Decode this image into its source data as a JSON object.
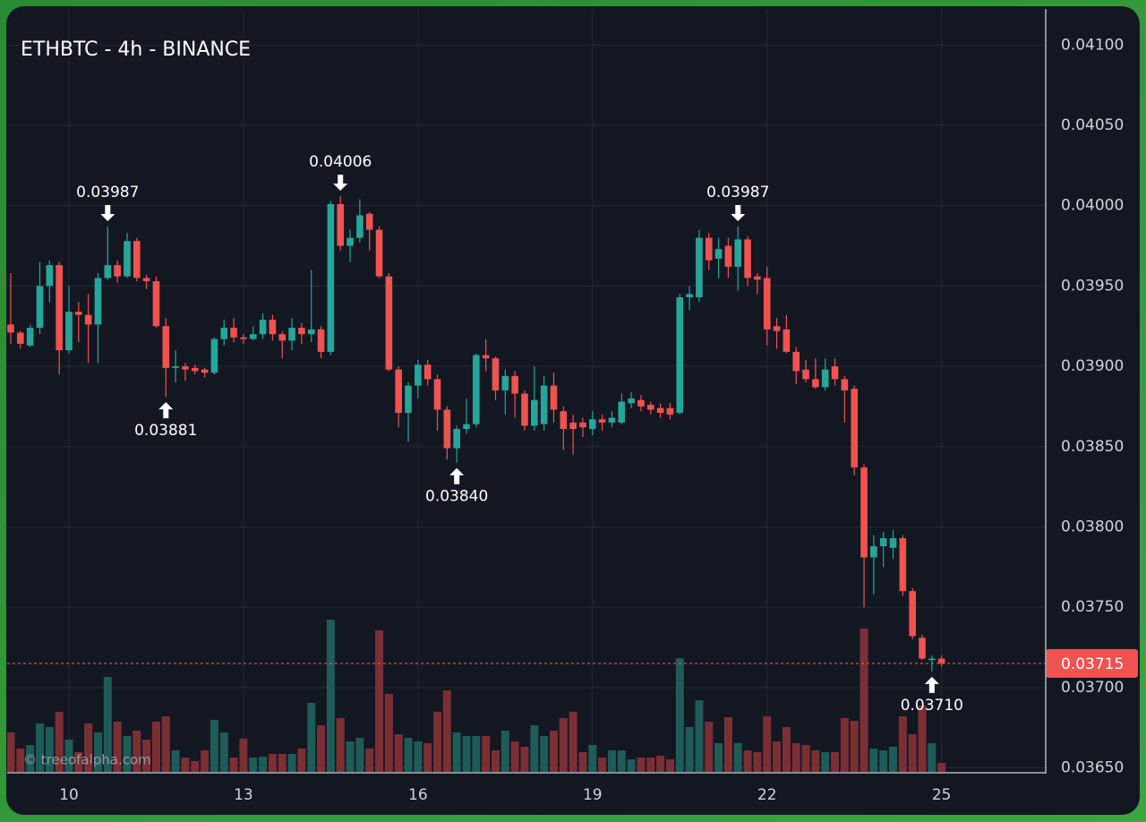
{
  "chart_data": {
    "type": "candlestick",
    "title": "ETHBTC - 4h - BINANCE",
    "watermark": "© treeofalpha.com",
    "categories": [
      null,
      null,
      null,
      null,
      null,
      null,
      "10",
      null,
      null,
      null,
      null,
      null,
      null,
      null,
      null,
      null,
      null,
      null,
      null,
      null,
      null,
      null,
      null,
      null,
      "13",
      null,
      null,
      null,
      null,
      null,
      null,
      null,
      null,
      null,
      null,
      null,
      null,
      null,
      null,
      null,
      null,
      null,
      "16",
      null,
      null,
      null,
      null,
      null,
      null,
      null,
      null,
      null,
      null,
      null,
      null,
      null,
      null,
      null,
      null,
      null,
      "19",
      null,
      null,
      null,
      null,
      null,
      null,
      null,
      null,
      null,
      null,
      null,
      null,
      null,
      null,
      null,
      null,
      null,
      "22",
      null,
      null,
      null,
      null,
      null,
      null,
      null,
      null,
      null,
      null,
      null,
      null,
      null,
      null,
      null,
      null,
      null,
      "25"
    ],
    "open": [
      0.03926,
      0.03921,
      0.03913,
      0.03924,
      0.0395,
      0.03963,
      0.0391,
      0.03934,
      0.03932,
      0.03926,
      0.03955,
      0.03963,
      0.03956,
      0.03978,
      0.03955,
      0.03953,
      0.03925,
      0.03899,
      0.039,
      0.03899,
      0.03898,
      0.03896,
      0.03917,
      0.03924,
      0.03918,
      0.03917,
      0.0392,
      0.03929,
      0.0392,
      0.03916,
      0.03924,
      0.0392,
      0.03923,
      0.03909,
      0.04001,
      0.03975,
      0.0398,
      0.03995,
      0.03985,
      0.03956,
      0.03898,
      0.03871,
      0.03888,
      0.03901,
      0.03892,
      0.03873,
      0.03849,
      0.03861,
      0.03864,
      0.03907,
      0.03905,
      0.03885,
      0.03894,
      0.03883,
      0.03863,
      0.03864,
      0.03888,
      0.03872,
      0.03865,
      0.03865,
      0.03861,
      0.03867,
      0.03865,
      0.03865,
      0.03877,
      0.03879,
      0.03876,
      0.03874,
      0.03874,
      0.03871,
      0.03943,
      0.03943,
      0.0398,
      0.03967,
      0.03975,
      0.03962,
      0.03979,
      0.03956,
      0.03955,
      0.03925,
      0.03923,
      0.03909,
      0.03898,
      0.03892,
      0.03887,
      0.039,
      0.03892,
      0.03886,
      0.03837,
      0.03781,
      0.03788,
      0.03787,
      0.03793,
      0.0376,
      0.03731,
      0.03717,
      0.03718
    ],
    "high": [
      0.03958,
      0.03922,
      0.03926,
      0.03965,
      0.03966,
      0.03965,
      0.0395,
      0.0394,
      0.03945,
      0.03958,
      0.03987,
      0.03966,
      0.03983,
      0.0398,
      0.03957,
      0.03956,
      0.0393,
      0.0391,
      0.03902,
      0.03901,
      0.03899,
      0.03918,
      0.03929,
      0.0393,
      0.0392,
      0.03925,
      0.03933,
      0.03932,
      0.03922,
      0.0393,
      0.03927,
      0.0396,
      0.03925,
      0.04003,
      0.04006,
      0.03985,
      0.04004,
      0.03996,
      0.03987,
      0.03958,
      0.039,
      0.0389,
      0.03904,
      0.03904,
      0.03895,
      0.03875,
      0.03863,
      0.0388,
      0.03908,
      0.03917,
      0.03906,
      0.03898,
      0.03897,
      0.03885,
      0.039,
      0.03894,
      0.03896,
      0.03875,
      0.0387,
      0.03868,
      0.03872,
      0.0387,
      0.03872,
      0.03883,
      0.03884,
      0.03882,
      0.03878,
      0.03877,
      0.03877,
      0.03945,
      0.0395,
      0.03985,
      0.03983,
      0.0398,
      0.0398,
      0.03987,
      0.03981,
      0.03958,
      0.03962,
      0.0393,
      0.03932,
      0.03912,
      0.03904,
      0.03905,
      0.03905,
      0.03905,
      0.03894,
      0.03888,
      0.03839,
      0.03795,
      0.03797,
      0.03798,
      0.03795,
      0.03762,
      0.03733,
      0.0372,
      0.0372
    ],
    "low": [
      0.03914,
      0.03911,
      0.03912,
      0.0392,
      0.0394,
      0.03895,
      0.03908,
      0.03915,
      0.03902,
      0.03902,
      0.03954,
      0.03952,
      0.03955,
      0.03953,
      0.03948,
      0.03924,
      0.03881,
      0.0389,
      0.03891,
      0.03895,
      0.03893,
      0.03895,
      0.03913,
      0.03915,
      0.03914,
      0.03916,
      0.03917,
      0.03916,
      0.03905,
      0.0391,
      0.03914,
      0.03915,
      0.03905,
      0.03907,
      0.03972,
      0.03965,
      0.03977,
      0.03972,
      0.03955,
      0.03897,
      0.03862,
      0.03853,
      0.0388,
      0.03888,
      0.0386,
      0.03842,
      0.0384,
      0.03858,
      0.03862,
      0.03897,
      0.03879,
      0.0387,
      0.03868,
      0.0386,
      0.0386,
      0.0386,
      0.03865,
      0.03848,
      0.03845,
      0.03856,
      0.03857,
      0.0386,
      0.03862,
      0.03864,
      0.03874,
      0.03872,
      0.0387,
      0.03868,
      0.03867,
      0.0387,
      0.03935,
      0.0394,
      0.0396,
      0.03955,
      0.03955,
      0.03947,
      0.0395,
      0.03945,
      0.03913,
      0.03911,
      0.03908,
      0.03889,
      0.0389,
      0.03886,
      0.03885,
      0.03888,
      0.03865,
      0.03832,
      0.0375,
      0.03758,
      0.03775,
      0.0378,
      0.03757,
      0.0373,
      0.03717,
      0.0371,
      0.03713
    ],
    "close": [
      0.03921,
      0.03914,
      0.03924,
      0.0395,
      0.03963,
      0.0391,
      0.03934,
      0.03932,
      0.03926,
      0.03955,
      0.03963,
      0.03956,
      0.03978,
      0.03955,
      0.03953,
      0.03925,
      0.03899,
      0.039,
      0.03898,
      0.03897,
      0.03896,
      0.03917,
      0.03924,
      0.03918,
      0.03917,
      0.0392,
      0.03929,
      0.0392,
      0.03916,
      0.03924,
      0.0392,
      0.03923,
      0.03909,
      0.04001,
      0.03975,
      0.0398,
      0.03994,
      0.03985,
      0.03956,
      0.03898,
      0.03871,
      0.03888,
      0.03901,
      0.03892,
      0.03873,
      0.03849,
      0.03861,
      0.03864,
      0.03907,
      0.03905,
      0.03885,
      0.03894,
      0.03883,
      0.03863,
      0.03879,
      0.03888,
      0.03873,
      0.03861,
      0.03861,
      0.03862,
      0.03867,
      0.03865,
      0.03868,
      0.03878,
      0.0388,
      0.03875,
      0.03873,
      0.03871,
      0.0387,
      0.03943,
      0.03945,
      0.0398,
      0.03966,
      0.03973,
      0.03962,
      0.03979,
      0.03955,
      0.03954,
      0.03923,
      0.03922,
      0.03909,
      0.03897,
      0.03892,
      0.03887,
      0.03898,
      0.03892,
      0.03885,
      0.03837,
      0.03781,
      0.03788,
      0.03793,
      0.03793,
      0.0376,
      0.03732,
      0.03718,
      0.03718,
      0.03715
    ],
    "volume": [
      44,
      26,
      30,
      54,
      50,
      67,
      36,
      22,
      54,
      44,
      106,
      56,
      40,
      46,
      36,
      56,
      62,
      24,
      16,
      12,
      24,
      58,
      44,
      16,
      37,
      16,
      17,
      20,
      20,
      20,
      26,
      77,
      52,
      170,
      60,
      34,
      38,
      26,
      158,
      87,
      42,
      38,
      34,
      32,
      67,
      91,
      44,
      40,
      40,
      40,
      24,
      46,
      34,
      28,
      52,
      40,
      46,
      60,
      67,
      22,
      30,
      16,
      24,
      24,
      14,
      16,
      16,
      18,
      14,
      127,
      50,
      80,
      56,
      32,
      61,
      32,
      24,
      22,
      62,
      34,
      50,
      32,
      30,
      24,
      22,
      22,
      60,
      57,
      160,
      26,
      24,
      28,
      62,
      42,
      74,
      32,
      10
    ],
    "up_color": "#26a69a",
    "down_color": "#ef5350",
    "volume_up_color": "#1d5c58",
    "volume_down_color": "#7b2f35",
    "ylim": [
      0.036475,
      0.041225
    ],
    "yticks": [
      {
        "value": 0.0365,
        "label": "0.03650"
      },
      {
        "value": 0.037,
        "label": "0.03700"
      },
      {
        "value": 0.0375,
        "label": "0.03750"
      },
      {
        "value": 0.038,
        "label": "0.03800"
      },
      {
        "value": 0.0385,
        "label": "0.03850"
      },
      {
        "value": 0.039,
        "label": "0.03900"
      },
      {
        "value": 0.0395,
        "label": "0.03950"
      },
      {
        "value": 0.04,
        "label": "0.04000"
      },
      {
        "value": 0.0405,
        "label": "0.04050"
      },
      {
        "value": 0.041,
        "label": "0.04100"
      }
    ],
    "grid": true,
    "last_price": {
      "value": 0.03715,
      "label": "0.03715"
    },
    "annotations": [
      {
        "index": 10,
        "value": 0.03987,
        "label": "0.03987",
        "side": "above"
      },
      {
        "index": 16,
        "value": 0.03881,
        "label": "0.03881",
        "side": "below"
      },
      {
        "index": 34,
        "value": 0.04006,
        "label": "0.04006",
        "side": "above"
      },
      {
        "index": 46,
        "value": 0.0384,
        "label": "0.03840",
        "side": "below"
      },
      {
        "index": 75,
        "value": 0.03987,
        "label": "0.03987",
        "side": "above"
      },
      {
        "index": 95,
        "value": 0.0371,
        "label": "0.03710",
        "side": "below"
      }
    ]
  }
}
